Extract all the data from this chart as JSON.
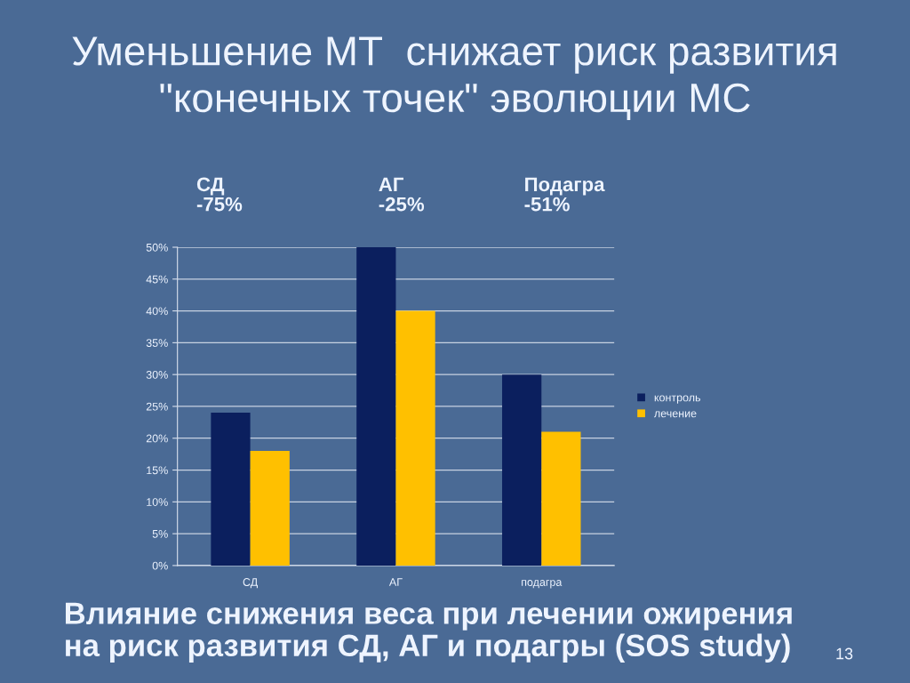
{
  "chart_data": {
    "type": "bar",
    "title": "Уменьшение МТ  снижает риск развития\n\"конечных точек\" эволюции МС",
    "categories": [
      "СД",
      "АГ",
      "подагра"
    ],
    "series": [
      {
        "name": "контроль",
        "color": "#0b1f5e",
        "values": [
          24,
          50,
          30
        ]
      },
      {
        "name": "лечение",
        "color": "#ffc000",
        "values": [
          18,
          40,
          21
        ]
      }
    ],
    "ylim": [
      0,
      50
    ],
    "yticks": [
      {
        "value": 0,
        "label": "0%"
      },
      {
        "value": 5,
        "label": "5%"
      },
      {
        "value": 10,
        "label": "10%"
      },
      {
        "value": 15,
        "label": "15%"
      },
      {
        "value": 20,
        "label": "20%"
      },
      {
        "value": 25,
        "label": "25%"
      },
      {
        "value": 30,
        "label": "30%"
      },
      {
        "value": 35,
        "label": "35%"
      },
      {
        "value": 40,
        "label": "40%"
      },
      {
        "value": 45,
        "label": "45%"
      },
      {
        "value": 50,
        "label": "50%"
      }
    ],
    "grid": "y",
    "legend": "right",
    "annotations": [
      "СД\n-75%",
      "АГ\n-25%",
      "Подагра\n-51%",
      "Влияние снижения веса при лечении ожирения\nна риск развития СД, АГ и подагры (SOS study)",
      "13"
    ]
  }
}
